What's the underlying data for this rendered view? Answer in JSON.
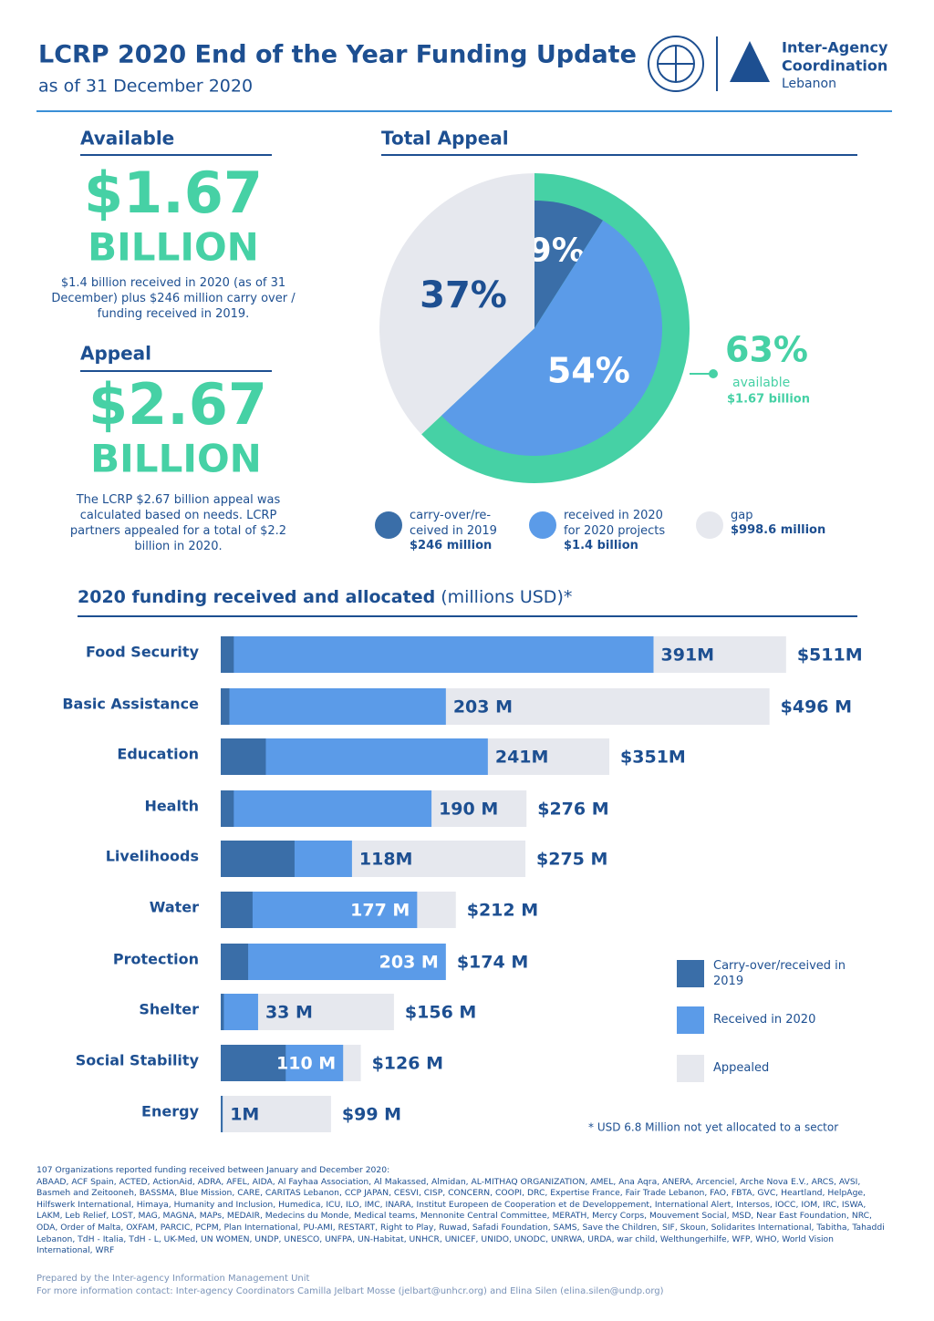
{
  "header": {
    "title": "LCRP 2020 End of the Year Funding Update",
    "subtitle": "as of 31 December 2020",
    "logo_text": [
      "Inter-Agency",
      "Coordination",
      "Lebanon"
    ]
  },
  "available": {
    "heading": "Available",
    "amount": "$1.67",
    "unit": "BILLION",
    "note": "$1.4 billion received in 2020 (as of 31 December) plus $246 million carry over / funding received in 2019."
  },
  "appeal": {
    "heading": "Appeal",
    "amount": "$2.67",
    "unit": "BILLION",
    "note": "The LCRP $2.67 billion appeal was calculated based on needs. LCRP partners appealed for a total of $2.2 billion in 2020."
  },
  "chart_data": [
    {
      "type": "pie",
      "title": "Total Appeal",
      "categories": [
        "carry-over/re-ceived in 2019",
        "received in 2020 for 2020 projects",
        "gap"
      ],
      "amounts": [
        "$246 million",
        "$1.4 billion",
        "$998.6 million"
      ],
      "values": [
        9,
        54,
        37
      ],
      "value_labels": [
        "9%",
        "54%",
        "37%"
      ],
      "colors": [
        "#3a6ea8",
        "#5b9be8",
        "#e6e8ee"
      ],
      "ring": {
        "value": 63,
        "value_label": "63%",
        "label": "available",
        "amount": "$1.67 billion",
        "color": "#46d1a5"
      }
    },
    {
      "type": "bar",
      "orientation": "horizontal",
      "title": "2020 funding received and allocated",
      "unit_label": "(millions USD)*",
      "categories": [
        "Food Security",
        "Basic Assistance",
        "Education",
        "Health",
        "Livelihoods",
        "Water",
        "Protection",
        "Shelter",
        "Social Stability",
        "Energy"
      ],
      "series": [
        {
          "name": "Appealed",
          "color": "#e6e8ee",
          "values": [
            511,
            496,
            351,
            276,
            275,
            212,
            174,
            156,
            126,
            99
          ],
          "value_labels": [
            "$511M",
            "$496 M",
            "$351M",
            "$276 M",
            "$275 M",
            "$212 M",
            "$174 M",
            "$156 M",
            "$126 M",
            "$99 M"
          ]
        },
        {
          "name": "Received in 2020",
          "color": "#5b9be8",
          "values": [
            391,
            203,
            241,
            190,
            118,
            177,
            203,
            33,
            110,
            1
          ],
          "value_labels": [
            "391M",
            "203 M",
            "241M",
            "190 M",
            "118M",
            "177 M",
            "203 M",
            "33 M",
            "110 M",
            "1M"
          ]
        },
        {
          "name": "Carry-over/received in 2019",
          "color": "#3a6ea8",
          "values": [
            11,
            7,
            40,
            11,
            66,
            28,
            24,
            2,
            58,
            0
          ]
        }
      ],
      "note": "* USD 6.8 Million not yet allocated to a sector"
    }
  ],
  "footer": {
    "orgs_intro": "107 Organizations reported funding received between January and December 2020:",
    "orgs": "ABAAD, ACF Spain, ACTED, ActionAid, ADRA, AFEL, AIDA, Al Fayhaa Association, Al Makassed, Almidan, AL-MITHAQ ORGANIZATION, AMEL, Ana Aqra, ANERA, Arcenciel, Arche Nova E.V., ARCS, AVSI, Basmeh and Zeitooneh, BASSMA, Blue Mission, CARE, CARITAS Lebanon, CCP JAPAN, CESVI, CISP, CONCERN, COOPI, DRC, Expertise France, Fair Trade Lebanon, FAO, FBTA, GVC, Heartland, HelpAge, Hilfswerk International, Himaya, Humanity and Inclusion, Humedica, ICU, ILO, IMC, INARA, Institut Europeen de Cooperation et de Developpement, International Alert, Intersos, IOCC, IOM, IRC, ISWA, LAKM, Leb Relief, LOST, MAG, MAGNA, MAPs, MEDAIR, Medecins du Monde, Medical teams, Mennonite Central Committee, MERATH, Mercy Corps, Mouvement Social, MSD, Near East Foundation, NRC, ODA, Order of Malta, OXFAM, PARCIC, PCPM, Plan International, PU-AMI, RESTART, Right to Play, Ruwad, Safadi Foundation, SAMS, Save the Children, SIF, Skoun, Solidarites International, Tabitha, Tahaddi Lebanon, TdH - Italia, TdH - L, UK-Med, UN WOMEN, UNDP, UNESCO, UNFPA, UN-Habitat, UNHCR, UNICEF, UNIDO, UNODC, UNRWA, URDA, war child, Welthungerhilfe, WFP, WHO, World Vision International, WRF",
    "prepared": "Prepared by the Inter-agency Information Management Unit",
    "contact": "For more information contact: Inter-agency Coordinators Camilla Jelbart Mosse (jelbart@unhcr.org) and Elina Silen (elina.silen@undp.org)"
  }
}
